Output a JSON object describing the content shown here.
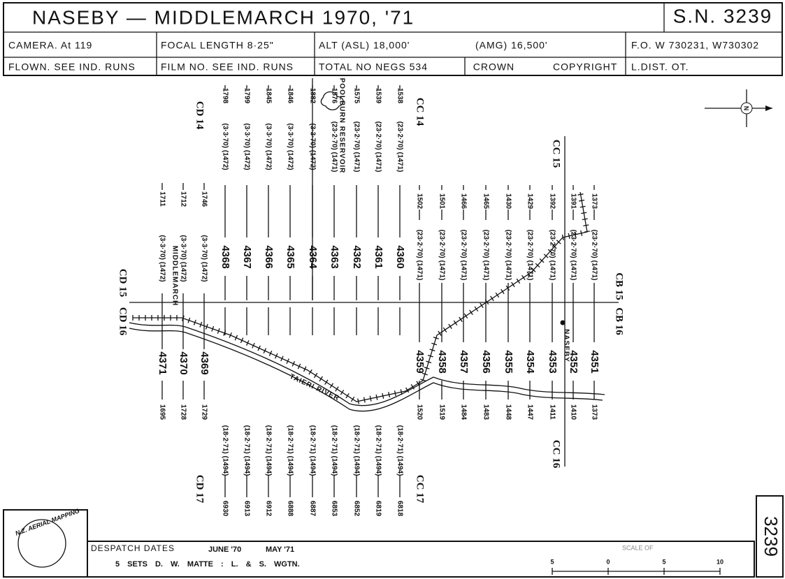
{
  "header": {
    "title": "NASEBY — MIDDLEMARCH 1970, '71",
    "sheet": "S.N. 3239",
    "row1": [
      "CAMERA. At 119",
      "FOCAL LENGTH 8·25\"",
      "ALT (ASL) 18,000'",
      "(AMG) 16,500'",
      "F.O. W 730231, W730302"
    ],
    "row2": [
      "FLOWN. SEE IND. RUNS",
      "FILM NO. SEE IND. RUNS",
      "TOTAL NO NEGS 534",
      "CROWN COPYRIGHT",
      "L.DIST. OT."
    ]
  },
  "map": {
    "north": "N",
    "sheets": [
      "CD 14",
      "CC 14",
      "CC 15",
      "CD 15",
      "CD 16",
      "CB 15",
      "CB 16",
      "CC 16",
      "CD 17",
      "CC 17"
    ],
    "places": [
      "POOLBURN RESERVOIR",
      "MIDDLEMARCH",
      "NASEBY",
      "TAIERI RIVER"
    ],
    "upper_runs": [
      {
        "run": "4368",
        "start": "1798",
        "dates": "(3·3·70) (1472)"
      },
      {
        "run": "4367",
        "start": "1799",
        "dates": "(3·3·70) (1472)"
      },
      {
        "run": "4366",
        "start": "1845",
        "dates": "(3·3·70) (1472)"
      },
      {
        "run": "4365",
        "start": "1846",
        "dates": "(3·3·70) (1472)"
      },
      {
        "run": "4364",
        "start": "1882",
        "dates": "(3·3·70) (1472)"
      },
      {
        "run": "4363",
        "start": "1576",
        "dates": "(23·2·70) (1471)"
      },
      {
        "run": "4362",
        "start": "1575",
        "dates": "(23·2·70) (1471)"
      },
      {
        "run": "4361",
        "start": "1539",
        "dates": "(23·2·70) (1471)"
      },
      {
        "run": "4360",
        "start": "1538",
        "dates": "(23·2·70) (1471)"
      }
    ],
    "left_runs": [
      {
        "run": "4371",
        "start": "1711",
        "end": "1695",
        "dates": "(3·3·70) (1472)"
      },
      {
        "run": "4370",
        "start": "1712",
        "end": "1728",
        "dates": "(3·3·70) (1472)"
      },
      {
        "run": "4369",
        "start": "1746",
        "end": "1729",
        "dates": "(3·3·70) (1472)"
      }
    ],
    "right_runs": [
      {
        "run": "4359",
        "start": "1502",
        "end": "1520",
        "dates": "(23·2·70) (1471)"
      },
      {
        "run": "4358",
        "start": "1501",
        "end": "1519",
        "dates": "(23·2·70) (1471)"
      },
      {
        "run": "4357",
        "start": "1466",
        "end": "1484",
        "dates": "(23·2·70) (1471)"
      },
      {
        "run": "4356",
        "start": "1465",
        "end": "1483",
        "dates": "(23·2·70) (1471)"
      },
      {
        "run": "4355",
        "start": "1430",
        "end": "1448",
        "dates": "(23·2·70) (1471)"
      },
      {
        "run": "4354",
        "start": "1429",
        "end": "1447",
        "dates": "(23·2·70) (1471)"
      },
      {
        "run": "4353",
        "start": "1392",
        "end": "1411",
        "dates": "(23·2·70) (1471)"
      },
      {
        "run": "4352",
        "start": "1391",
        "end": "1410",
        "dates": "(23·2·70) (1471)"
      },
      {
        "run": "4351",
        "start": "1373",
        "end": "1373",
        "dates": "(23·2·70) (1471)"
      }
    ],
    "lower_runs": [
      {
        "end": "6930",
        "dates": "(18·2·71) (1494)"
      },
      {
        "end": "6913",
        "dates": "(18·2·71) (1494)"
      },
      {
        "end": "6912",
        "dates": "(18·2·71) (1494)"
      },
      {
        "end": "6888",
        "dates": "(18·2·71) (1494)"
      },
      {
        "end": "6887",
        "dates": "(18·2·71) (1494)"
      },
      {
        "end": "6853",
        "dates": "(18·2·71) (1494)"
      },
      {
        "end": "6852",
        "dates": "(18·2·71) (1494)"
      },
      {
        "end": "6819",
        "dates": "(18·2·71) (1494)"
      },
      {
        "end": "6818",
        "dates": "(18·2·71) (1494)"
      }
    ]
  },
  "footer": {
    "logo": "N.Z. AERIAL MAPPING",
    "despatch": "DESPATCH DATES",
    "date1": "JUNE '70",
    "date2": "MAY '71",
    "sets": "5 SETS D. W. MATTE : L. & S. WGTN.",
    "scale_title": "SCALE OF",
    "scale": [
      "5",
      "0",
      "5",
      "10"
    ],
    "side": "3239"
  }
}
